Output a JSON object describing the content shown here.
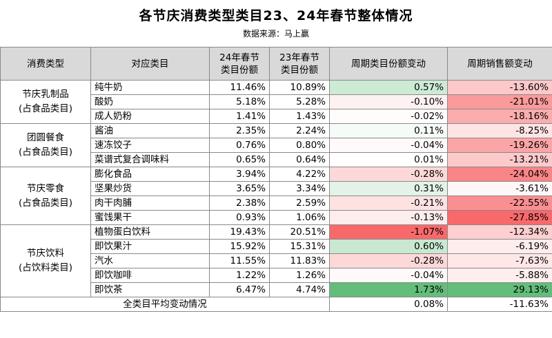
{
  "title": "各节庆消费类型类目23、24年春节整体情况",
  "subtitle": "数据来源：马上赢",
  "headers": {
    "type": "消费类型",
    "category": "对应类目",
    "share24_line1": "24年春节",
    "share24_line2": "类目份额",
    "share23_line1": "23年春节",
    "share23_line2": "类目份额",
    "share_change": "周期类目份额变动",
    "sales_change": "周期销售额变动"
  },
  "groups": [
    {
      "name_line1": "节庆乳制品",
      "name_line2": "(占食品类目)",
      "rows": [
        {
          "category": "纯牛奶",
          "share24": "11.46%",
          "share23": "10.89%",
          "share_change": "0.57%",
          "sales_change": "-13.60%",
          "share_change_value": 0.57,
          "sales_change_value": -13.6
        },
        {
          "category": "酸奶",
          "share24": "5.18%",
          "share23": "5.28%",
          "share_change": "-0.10%",
          "sales_change": "-21.01%",
          "share_change_value": -0.1,
          "sales_change_value": -21.01
        },
        {
          "category": "成人奶粉",
          "share24": "1.41%",
          "share23": "1.43%",
          "share_change": "-0.02%",
          "sales_change": "-18.16%",
          "share_change_value": -0.02,
          "sales_change_value": -18.16
        }
      ]
    },
    {
      "name_line1": "团圆餐食",
      "name_line2": "(占食品类目)",
      "rows": [
        {
          "category": "酱油",
          "share24": "2.35%",
          "share23": "2.24%",
          "share_change": "0.11%",
          "sales_change": "-8.25%",
          "share_change_value": 0.11,
          "sales_change_value": -8.25
        },
        {
          "category": "速冻饺子",
          "share24": "0.76%",
          "share23": "0.80%",
          "share_change": "-0.04%",
          "sales_change": "-19.26%",
          "share_change_value": -0.04,
          "sales_change_value": -19.26
        },
        {
          "category": "菜谱式复合调味料",
          "share24": "0.65%",
          "share23": "0.64%",
          "share_change": "0.01%",
          "sales_change": "-13.21%",
          "share_change_value": 0.01,
          "sales_change_value": -13.21
        }
      ]
    },
    {
      "name_line1": "节庆零食",
      "name_line2": "(占食品类目)",
      "rows": [
        {
          "category": "膨化食品",
          "share24": "3.94%",
          "share23": "4.22%",
          "share_change": "-0.28%",
          "sales_change": "-24.04%",
          "share_change_value": -0.28,
          "sales_change_value": -24.04
        },
        {
          "category": "坚果炒货",
          "share24": "3.65%",
          "share23": "3.34%",
          "share_change": "0.31%",
          "sales_change": "-3.61%",
          "share_change_value": 0.31,
          "sales_change_value": -3.61
        },
        {
          "category": "肉干肉脯",
          "share24": "2.38%",
          "share23": "2.59%",
          "share_change": "-0.21%",
          "sales_change": "-22.55%",
          "share_change_value": -0.21,
          "sales_change_value": -22.55
        },
        {
          "category": "蜜饯果干",
          "share24": "0.93%",
          "share23": "1.06%",
          "share_change": "-0.13%",
          "sales_change": "-27.85%",
          "share_change_value": -0.13,
          "sales_change_value": -27.85
        }
      ]
    },
    {
      "name_line1": "节庆饮料",
      "name_line2": "(占饮料类目)",
      "rows": [
        {
          "category": "植物蛋白饮料",
          "share24": "19.43%",
          "share23": "20.51%",
          "share_change": "-1.07%",
          "sales_change": "-12.34%",
          "share_change_value": -1.07,
          "sales_change_value": -12.34
        },
        {
          "category": "即饮果汁",
          "share24": "15.92%",
          "share23": "15.31%",
          "share_change": "0.60%",
          "sales_change": "-6.19%",
          "share_change_value": 0.6,
          "sales_change_value": -6.19
        },
        {
          "category": "汽水",
          "share24": "11.55%",
          "share23": "11.83%",
          "share_change": "-0.28%",
          "sales_change": "-7.63%",
          "share_change_value": -0.28,
          "sales_change_value": -7.63
        },
        {
          "category": "即饮咖啡",
          "share24": "1.22%",
          "share23": "1.26%",
          "share_change": "-0.04%",
          "sales_change": "-5.88%",
          "share_change_value": -0.04,
          "sales_change_value": -5.88
        },
        {
          "category": "即饮茶",
          "share24": "6.47%",
          "share23": "4.74%",
          "share_change": "1.73%",
          "sales_change": "29.13%",
          "share_change_value": 1.73,
          "sales_change_value": 29.13
        }
      ]
    }
  ],
  "footer": {
    "label": "全类目平均变动情况",
    "share_change": "0.08%",
    "sales_change": "-11.63%"
  },
  "colors": {
    "header_bg": "#d9d9d9",
    "positive_strong": "#63be7b",
    "negative_strong": "#f8696b",
    "neutral": "#ffffff"
  }
}
